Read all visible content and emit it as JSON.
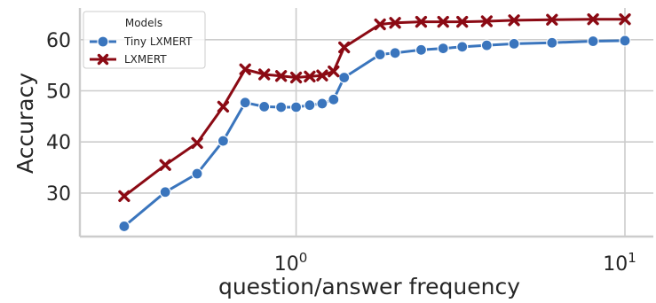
{
  "chart_data": {
    "type": "line",
    "xscale": "log",
    "xlabel": "question/answer frequency",
    "ylabel": "Accuracy",
    "xlim": [
      0.22,
      12.2
    ],
    "ylim": [
      21.5,
      66.2
    ],
    "grid": true,
    "yticks": [
      30,
      40,
      50,
      60
    ],
    "ytick_labels": [
      "30",
      "40",
      "50",
      "60"
    ],
    "xticks": [
      1,
      10
    ],
    "xtick_base": "10",
    "xtick_exps": [
      "0",
      "1"
    ],
    "legend": {
      "title": "Models",
      "location": "upper-left"
    },
    "series": [
      {
        "name": "Tiny LXMERT",
        "color": "#3a75bd",
        "marker": "circle",
        "x": [
          0.3,
          0.4,
          0.5,
          0.6,
          0.7,
          0.8,
          0.9,
          1.0,
          1.1,
          1.2,
          1.3,
          1.4,
          1.8,
          2.0,
          2.4,
          2.8,
          3.2,
          3.8,
          4.6,
          6.0,
          8.0,
          10.0
        ],
        "y": [
          23.5,
          30.2,
          33.8,
          40.2,
          47.7,
          46.9,
          46.8,
          46.8,
          47.2,
          47.5,
          48.3,
          52.6,
          57.1,
          57.4,
          58.0,
          58.3,
          58.6,
          58.9,
          59.2,
          59.4,
          59.7,
          59.8
        ]
      },
      {
        "name": "LXMERT",
        "color": "#8b0a14",
        "marker": "x",
        "x": [
          0.3,
          0.4,
          0.5,
          0.6,
          0.7,
          0.8,
          0.9,
          1.0,
          1.1,
          1.2,
          1.3,
          1.4,
          1.8,
          2.0,
          2.4,
          2.8,
          3.2,
          3.8,
          4.6,
          6.0,
          8.0,
          10.0
        ],
        "y": [
          29.4,
          35.5,
          39.8,
          46.9,
          54.2,
          53.2,
          52.9,
          52.6,
          52.8,
          53.0,
          53.8,
          58.5,
          63.0,
          63.3,
          63.5,
          63.5,
          63.5,
          63.6,
          63.8,
          63.9,
          64.0,
          64.0
        ]
      }
    ]
  }
}
